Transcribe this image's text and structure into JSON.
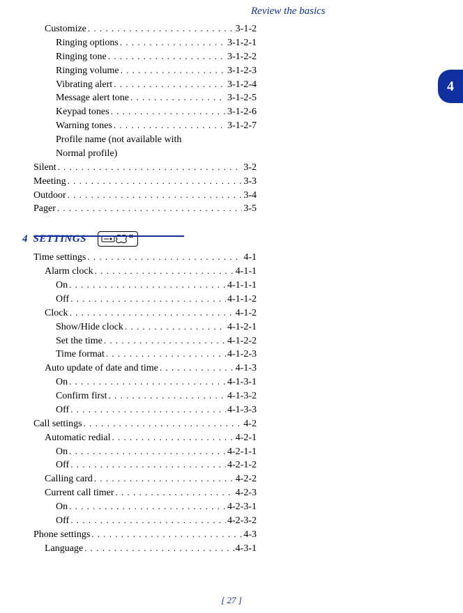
{
  "header": {
    "title": "Review the basics"
  },
  "tab": {
    "num": "4"
  },
  "footer": {
    "page": "[ 27 ]"
  },
  "top_block": {
    "rows": [
      {
        "indent": 1,
        "label": "Customize",
        "num": "3-1-2"
      },
      {
        "indent": 2,
        "label": "Ringing options",
        "num": "3-1-2-1"
      },
      {
        "indent": 2,
        "label": "Ringing tone",
        "num": "3-1-2-2"
      },
      {
        "indent": 2,
        "label": "Ringing volume",
        "num": "3-1-2-3"
      },
      {
        "indent": 2,
        "label": "Vibrating alert",
        "num": "3-1-2-4"
      },
      {
        "indent": 2,
        "label": "Message alert tone",
        "num": "3-1-2-5"
      },
      {
        "indent": 2,
        "label": "Keypad tones",
        "num": "3-1-2-6"
      },
      {
        "indent": 2,
        "label": "Warning tones",
        "num": "3-1-2-7"
      }
    ],
    "wrap1": "Profile name (not available with",
    "wrap2": "Normal profile)",
    "rows2": [
      {
        "indent": 0,
        "label": "Silent",
        "num": "3-2"
      },
      {
        "indent": 0,
        "label": "Meeting",
        "num": "3-3"
      },
      {
        "indent": 0,
        "label": "Outdoor",
        "num": "3-4"
      },
      {
        "indent": 0,
        "label": "Pager",
        "num": "3-5"
      }
    ]
  },
  "section": {
    "num": "4",
    "title": "SETTINGS"
  },
  "settings_rows": [
    {
      "indent": 0,
      "label": "Time settings",
      "num": "4-1"
    },
    {
      "indent": 1,
      "label": "Alarm clock",
      "num": "4-1-1"
    },
    {
      "indent": 2,
      "label": "On",
      "num": "4-1-1-1"
    },
    {
      "indent": 2,
      "label": "Off",
      "num": "4-1-1-2"
    },
    {
      "indent": 1,
      "label": "Clock",
      "num": "4-1-2"
    },
    {
      "indent": 2,
      "label": "Show/Hide clock",
      "num": "4-1-2-1"
    },
    {
      "indent": 2,
      "label": "Set the time",
      "num": "4-1-2-2"
    },
    {
      "indent": 2,
      "label": "Time format",
      "num": "4-1-2-3"
    },
    {
      "indent": 1,
      "label": "Auto update of date and time",
      "num": "4-1-3"
    },
    {
      "indent": 2,
      "label": "On",
      "num": "4-1-3-1"
    },
    {
      "indent": 2,
      "label": "Confirm first",
      "num": "4-1-3-2"
    },
    {
      "indent": 2,
      "label": "Off",
      "num": "4-1-3-3"
    },
    {
      "indent": 0,
      "label": "Call settings",
      "num": "4-2"
    },
    {
      "indent": 1,
      "label": "Automatic redial",
      "num": "4-2-1"
    },
    {
      "indent": 2,
      "label": "On",
      "num": "4-2-1-1"
    },
    {
      "indent": 2,
      "label": "Off",
      "num": "4-2-1-2"
    },
    {
      "indent": 1,
      "label": "Calling card",
      "num": "4-2-2"
    },
    {
      "indent": 1,
      "label": "Current call timer",
      "num": "4-2-3"
    },
    {
      "indent": 2,
      "label": "On",
      "num": "4-2-3-1"
    },
    {
      "indent": 2,
      "label": "Off",
      "num": "4-2-3-2"
    },
    {
      "indent": 0,
      "label": "Phone settings",
      "num": "4-3"
    },
    {
      "indent": 1,
      "label": "Language",
      "num": "4-3-1"
    }
  ]
}
